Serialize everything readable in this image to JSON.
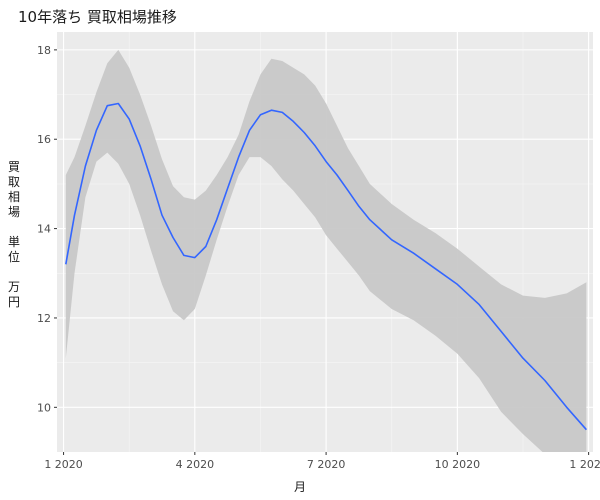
{
  "chart_data": {
    "type": "line",
    "title": "10年落ち 買取相場推移",
    "xlabel": "月",
    "ylabel": [
      "買",
      "取",
      "相",
      "場",
      "",
      "単",
      "位",
      "",
      "万",
      "円"
    ],
    "ylim": [
      9,
      18.4
    ],
    "xlim": [
      0.85,
      13.1
    ],
    "y_ticks": [
      10,
      12,
      14,
      16,
      18
    ],
    "x_ticks": [
      {
        "x": 1,
        "label": "1 2020"
      },
      {
        "x": 4,
        "label": "4 2020"
      },
      {
        "x": 7,
        "label": "7 2020"
      },
      {
        "x": 10,
        "label": "10 2020"
      },
      {
        "x": 13,
        "label": "1 2021"
      }
    ],
    "grid": true,
    "background": "#EBEBEB",
    "line_color": "#3366FF",
    "ribbon_color": "#C8C8C8",
    "series": [
      {
        "x": [
          1.05,
          1.25,
          1.5,
          1.75,
          2.0,
          2.25,
          2.5,
          2.75,
          3.0,
          3.25,
          3.5,
          3.75,
          4.0,
          4.25,
          4.5,
          4.75,
          5.0,
          5.25,
          5.5,
          5.75,
          6.0,
          6.25,
          6.5,
          6.75,
          7.0,
          7.25,
          7.5,
          7.75,
          8.0,
          8.5,
          9.0,
          9.5,
          10.0,
          10.5,
          11.0,
          11.5,
          12.0,
          12.5,
          12.95
        ],
        "y": [
          13.2,
          14.3,
          15.4,
          16.2,
          16.75,
          16.8,
          16.45,
          15.85,
          15.1,
          14.3,
          13.8,
          13.4,
          13.35,
          13.6,
          14.2,
          14.9,
          15.6,
          16.2,
          16.55,
          16.65,
          16.6,
          16.4,
          16.15,
          15.85,
          15.5,
          15.2,
          14.85,
          14.5,
          14.2,
          13.75,
          13.45,
          13.1,
          12.75,
          12.3,
          11.7,
          11.1,
          10.6,
          10.0,
          9.5
        ],
        "lower": [
          11.1,
          13.0,
          14.7,
          15.5,
          15.7,
          15.45,
          15.0,
          14.3,
          13.5,
          12.75,
          12.15,
          11.95,
          12.2,
          12.95,
          13.75,
          14.5,
          15.2,
          15.6,
          15.6,
          15.4,
          15.1,
          14.85,
          14.55,
          14.25,
          13.85,
          13.55,
          13.25,
          12.95,
          12.6,
          12.2,
          11.95,
          11.6,
          11.2,
          10.65,
          9.9,
          9.4,
          8.95,
          8.4,
          7.8
        ],
        "upper": [
          15.2,
          15.6,
          16.3,
          17.05,
          17.7,
          18.0,
          17.6,
          17.0,
          16.3,
          15.55,
          14.95,
          14.7,
          14.65,
          14.85,
          15.2,
          15.6,
          16.1,
          16.85,
          17.45,
          17.8,
          17.75,
          17.6,
          17.45,
          17.2,
          16.8,
          16.3,
          15.8,
          15.4,
          15.0,
          14.55,
          14.2,
          13.9,
          13.55,
          13.15,
          12.75,
          12.5,
          12.45,
          12.55,
          12.8
        ]
      }
    ]
  }
}
